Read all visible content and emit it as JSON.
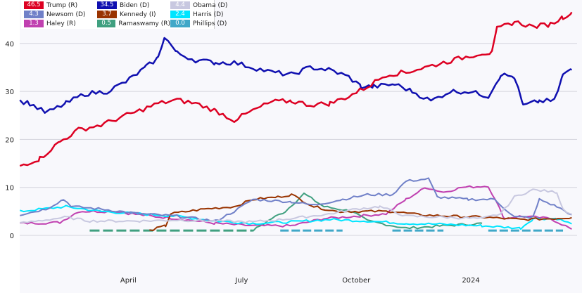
{
  "chart_data": {
    "type": "line",
    "title": "",
    "xlabel": "",
    "ylabel": "",
    "ylim": [
      -12,
      49
    ],
    "xlim": [
      "2023-01-01",
      "2024-03-28"
    ],
    "yticks": [
      0,
      10,
      20,
      30,
      40
    ],
    "xticks": [
      {
        "date": "2023-04-01",
        "label": "April"
      },
      {
        "date": "2023-07-01",
        "label": "July"
      },
      {
        "date": "2023-10-01",
        "label": "October"
      },
      {
        "date": "2024-01-01",
        "label": "2024"
      }
    ],
    "grid": true,
    "legend_position": "top-left",
    "series": [
      {
        "name": "Trump (R)",
        "label": "46.5",
        "color": "#dd0022",
        "points": [
          [
            "2023-01-04",
            14.5
          ],
          [
            "2023-01-20",
            16
          ],
          [
            "2023-02-05",
            19.5
          ],
          [
            "2023-02-20",
            22
          ],
          [
            "2023-03-10",
            23
          ],
          [
            "2023-03-25",
            24.5
          ],
          [
            "2023-04-10",
            26
          ],
          [
            "2023-04-25",
            27.5
          ],
          [
            "2023-05-10",
            28.2
          ],
          [
            "2023-05-25",
            27.5
          ],
          [
            "2023-06-10",
            26
          ],
          [
            "2023-06-25",
            24
          ],
          [
            "2023-07-10",
            26
          ],
          [
            "2023-07-25",
            27.8
          ],
          [
            "2023-08-10",
            28
          ],
          [
            "2023-08-25",
            27.2
          ],
          [
            "2023-09-10",
            27.5
          ],
          [
            "2023-09-25",
            29
          ],
          [
            "2023-10-10",
            31
          ],
          [
            "2023-10-25",
            33.5
          ],
          [
            "2023-11-10",
            34
          ],
          [
            "2023-11-25",
            35
          ],
          [
            "2023-12-10",
            36
          ],
          [
            "2023-12-25",
            37
          ],
          [
            "2024-01-10",
            38
          ],
          [
            "2024-01-18",
            38
          ],
          [
            "2024-01-22",
            43
          ],
          [
            "2024-02-05",
            44.5
          ],
          [
            "2024-02-20",
            43.5
          ],
          [
            "2024-03-05",
            44
          ],
          [
            "2024-03-15",
            45.5
          ],
          [
            "2024-03-22",
            46.5
          ]
        ]
      },
      {
        "name": "Biden (D)",
        "label": "34.5",
        "color": "#1010b0",
        "points": [
          [
            "2023-01-04",
            28
          ],
          [
            "2023-01-12",
            27.5
          ],
          [
            "2023-01-25",
            25.5
          ],
          [
            "2023-02-10",
            27.5
          ],
          [
            "2023-02-25",
            29.5
          ],
          [
            "2023-03-15",
            30
          ],
          [
            "2023-03-30",
            32
          ],
          [
            "2023-04-15",
            35
          ],
          [
            "2023-04-25",
            37
          ],
          [
            "2023-04-30",
            41.5
          ],
          [
            "2023-05-10",
            38
          ],
          [
            "2023-05-25",
            36.5
          ],
          [
            "2023-06-10",
            36
          ],
          [
            "2023-06-25",
            36
          ],
          [
            "2023-07-10",
            35
          ],
          [
            "2023-07-25",
            34
          ],
          [
            "2023-08-10",
            33.5
          ],
          [
            "2023-08-25",
            35
          ],
          [
            "2023-09-10",
            34.5
          ],
          [
            "2023-09-25",
            33
          ],
          [
            "2023-10-05",
            31
          ],
          [
            "2023-10-15",
            31
          ],
          [
            "2023-11-01",
            31.5
          ],
          [
            "2023-11-15",
            30
          ],
          [
            "2023-11-30",
            28
          ],
          [
            "2023-12-15",
            30
          ],
          [
            "2023-12-30",
            30
          ],
          [
            "2024-01-15",
            29
          ],
          [
            "2024-01-25",
            33.5
          ],
          [
            "2024-02-05",
            33
          ],
          [
            "2024-02-12",
            27
          ],
          [
            "2024-02-25",
            28
          ],
          [
            "2024-03-08",
            28
          ],
          [
            "2024-03-15",
            33.5
          ],
          [
            "2024-03-22",
            34.5
          ]
        ]
      },
      {
        "name": "Obama (D)",
        "label": "4.4",
        "color": "#c8c8e0",
        "points": [
          [
            "2023-01-04",
            2.5
          ],
          [
            "2023-02-10",
            3.8
          ],
          [
            "2023-03-01",
            3
          ],
          [
            "2023-04-10",
            3
          ],
          [
            "2023-05-10",
            3.2
          ],
          [
            "2023-06-10",
            3
          ],
          [
            "2023-07-10",
            2.8
          ],
          [
            "2023-08-10",
            3.5
          ],
          [
            "2023-09-10",
            4.5
          ],
          [
            "2023-10-01",
            5.5
          ],
          [
            "2023-10-20",
            6
          ],
          [
            "2023-11-10",
            4
          ],
          [
            "2023-12-10",
            3.8
          ],
          [
            "2024-01-10",
            3.5
          ],
          [
            "2024-01-25",
            4.5
          ],
          [
            "2024-02-05",
            8
          ],
          [
            "2024-02-20",
            9.5
          ],
          [
            "2024-03-10",
            9
          ],
          [
            "2024-03-15",
            5.5
          ],
          [
            "2024-03-22",
            4.4
          ]
        ]
      },
      {
        "name": "Newsom (D)",
        "label": "4.3",
        "color": "#7080c8",
        "points": [
          [
            "2023-01-04",
            4.3
          ],
          [
            "2023-01-25",
            5.5
          ],
          [
            "2023-02-08",
            7.5
          ],
          [
            "2023-02-15",
            6
          ],
          [
            "2023-03-10",
            5.5
          ],
          [
            "2023-04-10",
            4.5
          ],
          [
            "2023-05-10",
            4
          ],
          [
            "2023-06-10",
            3
          ],
          [
            "2023-06-25",
            5
          ],
          [
            "2023-07-10",
            7.5
          ],
          [
            "2023-08-10",
            7
          ],
          [
            "2023-08-28",
            6.3
          ],
          [
            "2023-09-20",
            7.5
          ],
          [
            "2023-10-10",
            8.5
          ],
          [
            "2023-10-30",
            8.5
          ],
          [
            "2023-11-10",
            11.3
          ],
          [
            "2023-11-28",
            11.8
          ],
          [
            "2023-12-05",
            8
          ],
          [
            "2023-12-30",
            7.5
          ],
          [
            "2024-01-20",
            7.5
          ],
          [
            "2024-02-05",
            3.8
          ],
          [
            "2024-02-20",
            3.8
          ],
          [
            "2024-02-25",
            7.5
          ],
          [
            "2024-03-10",
            6
          ],
          [
            "2024-03-22",
            4.3
          ]
        ]
      },
      {
        "name": "Kennedy (I)",
        "label": "3.7",
        "color": "#993300",
        "points": [
          [
            "2023-04-18",
            1
          ],
          [
            "2023-05-01",
            2
          ],
          [
            "2023-05-05",
            4.5
          ],
          [
            "2023-06-01",
            5.5
          ],
          [
            "2023-06-25",
            6
          ],
          [
            "2023-07-10",
            7.5
          ],
          [
            "2023-07-30",
            8
          ],
          [
            "2023-08-10",
            8.5
          ],
          [
            "2023-08-28",
            6
          ],
          [
            "2023-09-15",
            5
          ],
          [
            "2023-10-10",
            5
          ],
          [
            "2023-10-30",
            5
          ],
          [
            "2023-11-20",
            4.3
          ],
          [
            "2023-12-15",
            4
          ],
          [
            "2024-01-10",
            3.8
          ],
          [
            "2024-02-10",
            3.3
          ],
          [
            "2024-03-05",
            3.5
          ],
          [
            "2024-03-22",
            3.7
          ]
        ]
      },
      {
        "name": "Harris (D)",
        "label": "2.4",
        "color": "#00e5ff",
        "points": [
          [
            "2023-01-04",
            5
          ],
          [
            "2023-02-10",
            6
          ],
          [
            "2023-03-10",
            5
          ],
          [
            "2023-04-10",
            4.5
          ],
          [
            "2023-05-10",
            4
          ],
          [
            "2023-06-10",
            3
          ],
          [
            "2023-07-10",
            2.5
          ],
          [
            "2023-08-10",
            2.8
          ],
          [
            "2023-09-10",
            3.3
          ],
          [
            "2023-10-10",
            3
          ],
          [
            "2023-11-10",
            2.5
          ],
          [
            "2023-12-10",
            2.3
          ],
          [
            "2024-01-10",
            2
          ],
          [
            "2024-02-10",
            1.5
          ],
          [
            "2024-02-20",
            3.5
          ],
          [
            "2024-03-10",
            3.5
          ],
          [
            "2024-03-22",
            2.4
          ]
        ]
      },
      {
        "name": "Haley (R)",
        "label": "1.3",
        "color": "#c040b0",
        "points": [
          [
            "2023-01-04",
            2.5
          ],
          [
            "2023-02-05",
            2.7
          ],
          [
            "2023-02-20",
            5
          ],
          [
            "2023-03-20",
            5
          ],
          [
            "2023-04-20",
            4
          ],
          [
            "2023-05-10",
            3.5
          ],
          [
            "2023-06-10",
            2.5
          ],
          [
            "2023-07-10",
            2
          ],
          [
            "2023-08-10",
            2
          ],
          [
            "2023-09-05",
            3.5
          ],
          [
            "2023-10-01",
            4
          ],
          [
            "2023-10-25",
            4.5
          ],
          [
            "2023-11-10",
            7.5
          ],
          [
            "2023-11-26",
            10
          ],
          [
            "2023-12-10",
            9
          ],
          [
            "2023-12-25",
            10
          ],
          [
            "2024-01-15",
            10.3
          ],
          [
            "2024-01-28",
            3.5
          ],
          [
            "2024-02-10",
            4
          ],
          [
            "2024-03-05",
            3.5
          ],
          [
            "2024-03-22",
            1.3
          ]
        ]
      },
      {
        "name": "Ramaswamy (R)",
        "label": "0.5",
        "color": "#40a080",
        "points": [
          [
            "2023-03-01",
            1
          ],
          [
            "2023-07-10",
            1
          ],
          [
            "2023-07-25",
            3.5
          ],
          [
            "2023-08-05",
            5
          ],
          [
            "2023-08-20",
            8.7
          ],
          [
            "2023-09-05",
            6
          ],
          [
            "2023-09-28",
            5
          ],
          [
            "2023-10-10",
            3
          ],
          [
            "2023-11-10",
            1.5
          ],
          [
            "2023-12-10",
            2
          ],
          [
            "2024-01-10",
            2.5
          ]
        ]
      },
      {
        "name": "Phillips (D)",
        "label": "0.0",
        "color": "#40a8c8",
        "points": [
          [
            "2023-08-01",
            1
          ],
          [
            "2023-09-20",
            1
          ],
          [
            "2023-10-30",
            1
          ],
          [
            "2023-12-10",
            1
          ],
          [
            "2024-01-15",
            1
          ],
          [
            "2024-03-15",
            1
          ]
        ]
      }
    ]
  }
}
